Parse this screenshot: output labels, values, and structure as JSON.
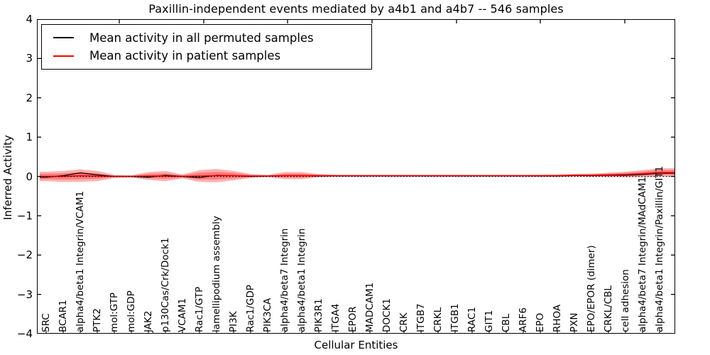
{
  "figure": {
    "title": "Paxillin-independent events mediated by a4b1 and a4b7 -- 546 samples",
    "y_axis_label": "Inferred Activity",
    "x_axis_label": "Cellular Entities"
  },
  "legend": {
    "entries": [
      {
        "label": "Mean activity in all permuted samples",
        "color": "#000000"
      },
      {
        "label": "Mean activity in patient samples",
        "color": "#ff0000"
      }
    ]
  },
  "chart_data": {
    "type": "line",
    "title": "Paxillin-independent events mediated by a4b1 and a4b7 -- 546 samples",
    "xlabel": "Cellular Entities",
    "ylabel": "Inferred Activity",
    "ylim": [
      -4,
      4
    ],
    "y_ticks": [
      4,
      3,
      2,
      1,
      0,
      -1,
      -2,
      -3,
      -4
    ],
    "grid": false,
    "legend_position": "upper left",
    "categories": [
      "SRC",
      "BCAR1",
      "alpha4/beta1 Integrin/VCAM1",
      "PTK2",
      "mol:GTP",
      "mol:GDP",
      "JAK2",
      "p130Cas/Crk/Dock1",
      "VCAM1",
      "Rac1/GTP",
      "lamellipodium assembly",
      "PI3K",
      "Rac1/GDP",
      "PIK3CA",
      "alpha4/beta7 Integrin",
      "alpha4/beta1 Integrin",
      "PIK3R1",
      "ITGA4",
      "EPOR",
      "MADCAM1",
      "DOCK1",
      "CRK",
      "ITGB7",
      "CRKL",
      "ITGB1",
      "RAC1",
      "GIT1",
      "CBL",
      "ARF6",
      "EPO",
      "RHOA",
      "PXN",
      "EPO/EPOR (dimer)",
      "CRKL/CBL",
      "cell adhesion",
      "alpha4/beta7 Integrin/MAdCAM1",
      "alpha4/beta1 Integrin/Paxillin/GIT1"
    ],
    "series": [
      {
        "name": "Mean activity in all permuted samples",
        "color": "#000000",
        "values": [
          -0.02,
          0.02,
          0.09,
          0.04,
          0,
          0,
          -0.02,
          0.03,
          0,
          -0.03,
          0.03,
          0.02,
          0,
          0.01,
          0.02,
          0.02,
          0.01,
          0.01,
          0.01,
          0.01,
          0.01,
          0.01,
          0.01,
          0.01,
          0.01,
          0.01,
          0.01,
          0.01,
          0.01,
          0.01,
          0.01,
          0.02,
          0.02,
          0.03,
          0.03,
          0.05,
          0.08
        ]
      },
      {
        "name": "Mean activity in patient samples",
        "color": "#ff0000",
        "values": [
          0,
          0,
          0.02,
          0.01,
          0,
          0,
          0.01,
          0.01,
          0,
          0.01,
          0.02,
          0.02,
          0.01,
          0.01,
          0.02,
          0.02,
          0.02,
          0.02,
          0.02,
          0.02,
          0.02,
          0.02,
          0.02,
          0.02,
          0.02,
          0.02,
          0.02,
          0.02,
          0.02,
          0.02,
          0.02,
          0.03,
          0.03,
          0.04,
          0.05,
          0.07,
          0.1
        ]
      }
    ],
    "band": {
      "color": "#ff0000",
      "outer_half_width": [
        0.12,
        0.14,
        0.16,
        0.13,
        0.04,
        0.03,
        0.1,
        0.13,
        0.05,
        0.15,
        0.17,
        0.12,
        0.05,
        0.03,
        0.09,
        0.09,
        0.04,
        0.02,
        0.02,
        0.02,
        0.02,
        0.02,
        0.02,
        0.02,
        0.02,
        0.02,
        0.02,
        0.02,
        0.02,
        0.025,
        0.03,
        0.035,
        0.045,
        0.055,
        0.07,
        0.09,
        0.11
      ],
      "inner_half_width": [
        0.07,
        0.08,
        0.09,
        0.07,
        0.02,
        0.015,
        0.055,
        0.07,
        0.03,
        0.085,
        0.095,
        0.07,
        0.03,
        0.015,
        0.05,
        0.05,
        0.02,
        0.01,
        0.01,
        0.01,
        0.01,
        0.01,
        0.01,
        0.01,
        0.01,
        0.01,
        0.01,
        0.01,
        0.01,
        0.013,
        0.016,
        0.02,
        0.025,
        0.03,
        0.04,
        0.05,
        0.065
      ]
    },
    "zero_line": {
      "y": 0,
      "style": "dotted",
      "color": "#000000"
    }
  }
}
